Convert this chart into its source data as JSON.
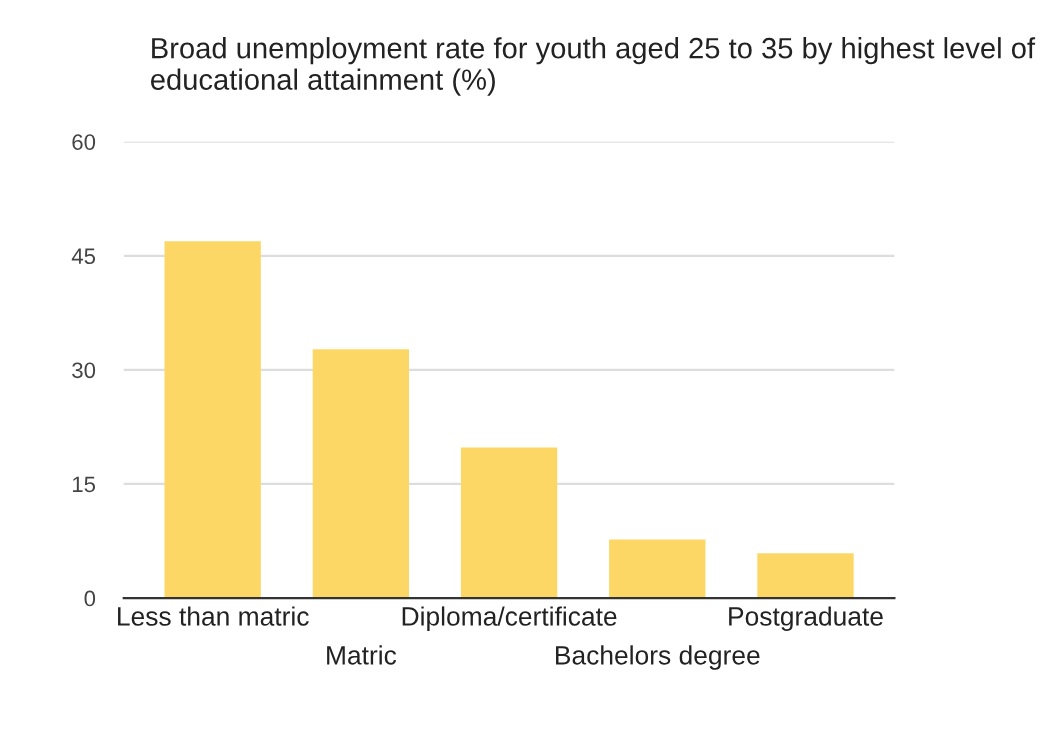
{
  "chart_data": {
    "type": "bar",
    "title": "Broad unemployment rate for youth aged 25 to 35 by highest level of educational attainment (%)",
    "categories": [
      "Less than matric",
      "Matric",
      "Diploma/certificate",
      "Bachelors degree",
      "Postgraduate"
    ],
    "values": [
      46.9,
      32.7,
      19.8,
      7.7,
      5.9
    ],
    "color": "#fdd766",
    "ylim": [
      0,
      60
    ],
    "yticks": [
      0,
      15,
      30,
      45,
      60
    ],
    "grid": "y"
  }
}
